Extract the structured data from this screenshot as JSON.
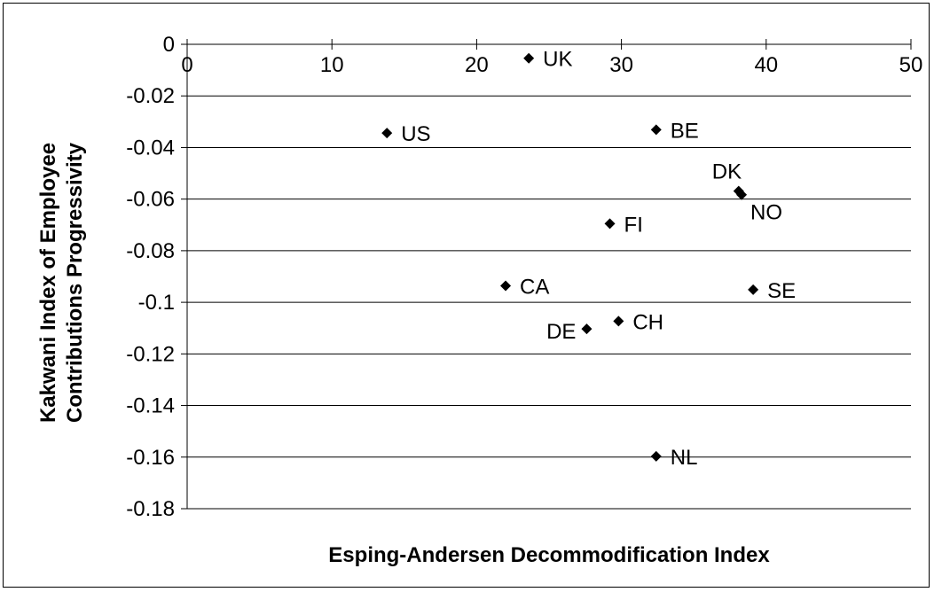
{
  "chart_data": {
    "type": "scatter",
    "title": "",
    "xlabel": "Esping-Andersen Decommodification Index",
    "ylabel_lines": [
      "Kakwani Index of Employee",
      "Contributions Progressivity"
    ],
    "xlim": [
      0,
      50
    ],
    "ylim": [
      -0.18,
      0
    ],
    "xticks": [
      0,
      10,
      20,
      30,
      40,
      50
    ],
    "yticks": [
      0,
      -0.02,
      -0.04,
      -0.06,
      -0.08,
      -0.1,
      -0.12,
      -0.14,
      -0.16,
      -0.18
    ],
    "x_tick_labels": [
      "0",
      "10",
      "20",
      "30",
      "40",
      "50"
    ],
    "y_tick_labels": [
      "0",
      "-0.02",
      "-0.04",
      "-0.06",
      "-0.08",
      "-0.1",
      "-0.12",
      "-0.14",
      "-0.16",
      "-0.18"
    ],
    "grid": "horizontal",
    "legend": "none",
    "marker_color": "#000000",
    "points": [
      {
        "label": "UK",
        "x": 23.6,
        "y": -0.0054,
        "label_pos": "right"
      },
      {
        "label": "US",
        "x": 13.8,
        "y": -0.0344,
        "label_pos": "right"
      },
      {
        "label": "BE",
        "x": 32.4,
        "y": -0.0331,
        "label_pos": "right"
      },
      {
        "label": "DK",
        "x": 38.1,
        "y": -0.0569,
        "label_pos": "above-left"
      },
      {
        "label": "NO",
        "x": 38.3,
        "y": -0.0583,
        "label_pos": "below-right"
      },
      {
        "label": "FI",
        "x": 29.2,
        "y": -0.0695,
        "label_pos": "right"
      },
      {
        "label": "CA",
        "x": 22.0,
        "y": -0.0936,
        "label_pos": "right"
      },
      {
        "label": "SE",
        "x": 39.1,
        "y": -0.0951,
        "label_pos": "right"
      },
      {
        "label": "CH",
        "x": 29.8,
        "y": -0.1073,
        "label_pos": "right"
      },
      {
        "label": "DE",
        "x": 27.6,
        "y": -0.1103,
        "label_pos": "left"
      },
      {
        "label": "NL",
        "x": 32.4,
        "y": -0.1597,
        "label_pos": "right"
      }
    ]
  }
}
